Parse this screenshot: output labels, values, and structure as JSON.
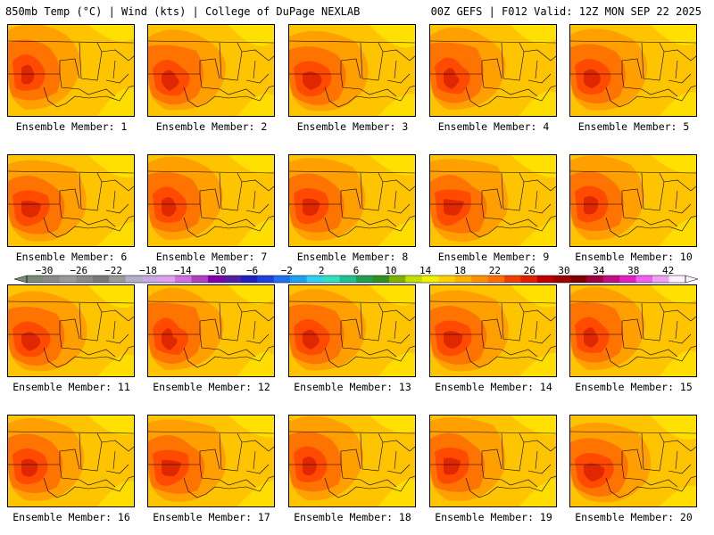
{
  "header": {
    "left": "850mb Temp (°C) | Wind (kts) | College of DuPage NEXLAB",
    "right": "00Z GEFS | F012 Valid: 12Z MON SEP 22 2025"
  },
  "members": [
    {
      "label": "Ensemble Member: 1"
    },
    {
      "label": "Ensemble Member: 2"
    },
    {
      "label": "Ensemble Member: 3"
    },
    {
      "label": "Ensemble Member: 4"
    },
    {
      "label": "Ensemble Member: 5"
    },
    {
      "label": "Ensemble Member: 6"
    },
    {
      "label": "Ensemble Member: 7"
    },
    {
      "label": "Ensemble Member: 8"
    },
    {
      "label": "Ensemble Member: 9"
    },
    {
      "label": "Ensemble Member: 10"
    },
    {
      "label": "Ensemble Member: 11"
    },
    {
      "label": "Ensemble Member: 12"
    },
    {
      "label": "Ensemble Member: 13"
    },
    {
      "label": "Ensemble Member: 14"
    },
    {
      "label": "Ensemble Member: 15"
    },
    {
      "label": "Ensemble Member: 16"
    },
    {
      "label": "Ensemble Member: 17"
    },
    {
      "label": "Ensemble Member: 18"
    },
    {
      "label": "Ensemble Member: 19"
    },
    {
      "label": "Ensemble Member: 20"
    }
  ],
  "colorbar": {
    "ticks": [
      "-30",
      "-26",
      "-22",
      "-18",
      "-14",
      "-10",
      "-6",
      "-2",
      "2",
      "6",
      "10",
      "14",
      "18",
      "22",
      "26",
      "30",
      "34",
      "38",
      "42"
    ],
    "min": -32,
    "max": 44,
    "colors": [
      "#7a8a78",
      "#8a8a8a",
      "#9a9a9a",
      "#8a8a8a",
      "#7a7a7a",
      "#9a9a9a",
      "#b0b0c8",
      "#c8a8e0",
      "#e0a0f0",
      "#d070e0",
      "#b040c0",
      "#8000b0",
      "#5020a0",
      "#2020c0",
      "#2040e0",
      "#2070f0",
      "#20a0f0",
      "#30d0f0",
      "#30e0c0",
      "#20c090",
      "#20a050",
      "#309020",
      "#80b000",
      "#c0e000",
      "#f0f000",
      "#ffd000",
      "#ffb000",
      "#ff9000",
      "#ff7000",
      "#f04000",
      "#e02000",
      "#c00000",
      "#a00000",
      "#800000",
      "#a00040",
      "#c01080",
      "#e020c0",
      "#f060f0",
      "#f0a0f0",
      "#fff0ff"
    ],
    "palette": {
      "bg": "#ffc400",
      "yellow": "#ffe000",
      "orange": "#ff9f00",
      "deep_orange": "#ff7300",
      "red": "#ff4a00",
      "dark_red": "#e02800"
    }
  }
}
